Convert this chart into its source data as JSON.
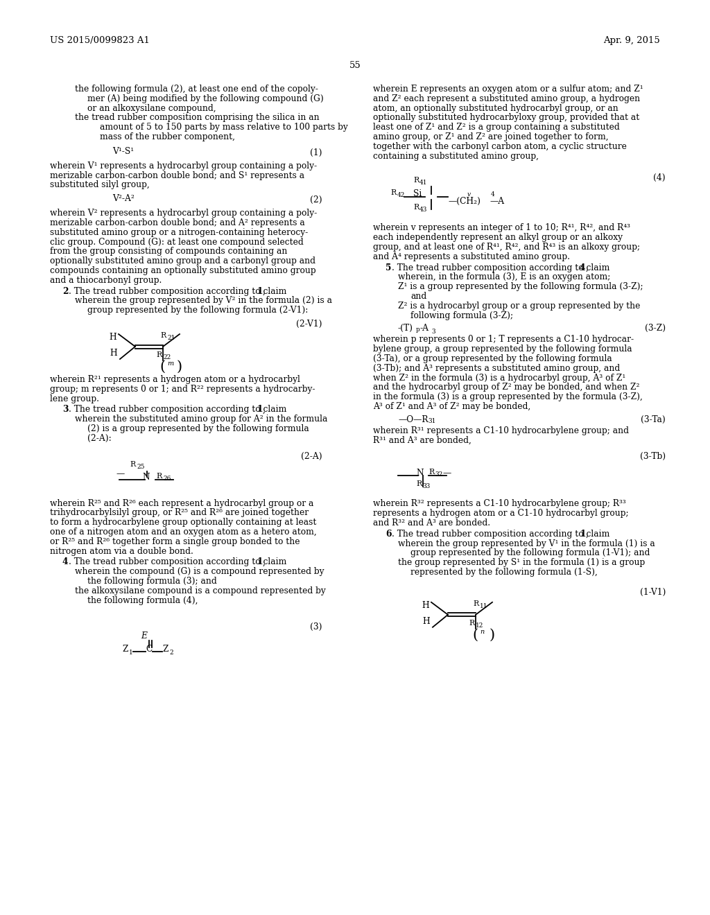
{
  "bg": "#ffffff",
  "header_left": "US 2015/0099823 A1",
  "header_right": "Apr. 9, 2015",
  "page_num": "55"
}
